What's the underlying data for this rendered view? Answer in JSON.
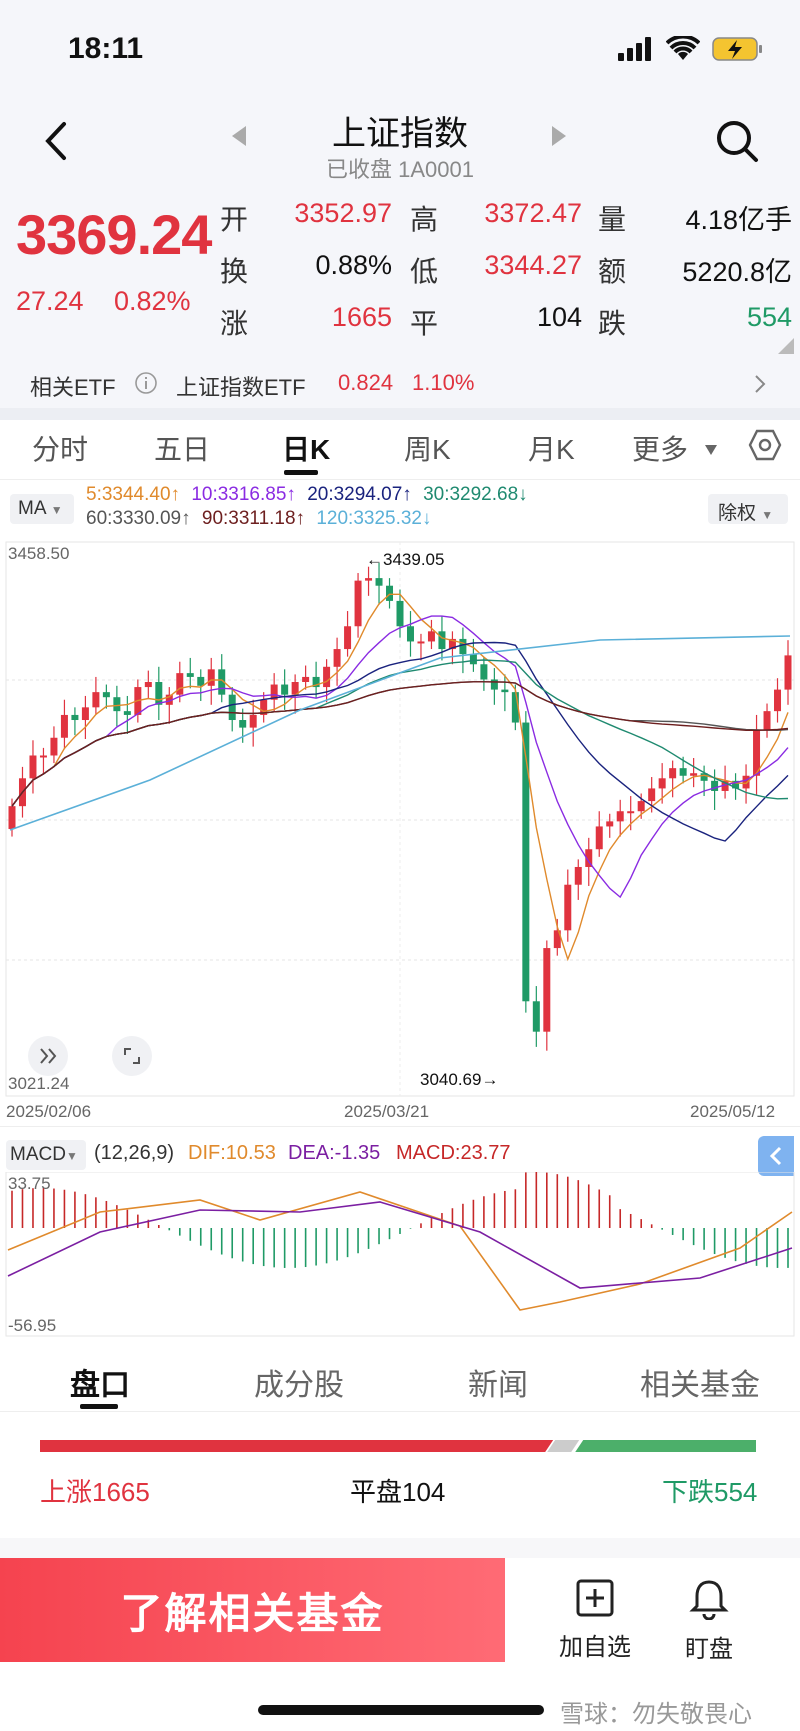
{
  "status": {
    "time": "18:11"
  },
  "nav": {
    "title": "上证指数",
    "subtitle": "已收盘 1A0001"
  },
  "quote": {
    "price": "3369.24",
    "change": "27.24",
    "change_pct": "0.82%",
    "open_label": "开",
    "open": "3352.97",
    "high_label": "高",
    "high": "3372.47",
    "volume_label": "量",
    "volume": "4.18亿手",
    "turnover_label": "换",
    "turnover": "0.88%",
    "low_label": "低",
    "low": "3344.27",
    "amount_label": "额",
    "amount": "5220.8亿",
    "up_label": "涨",
    "up": "1665",
    "flat_label": "平",
    "flat": "104",
    "down_label": "跌",
    "down": "554"
  },
  "etf": {
    "label": "相关ETF",
    "name": "上证指数ETF",
    "price": "0.824",
    "pct": "1.10%"
  },
  "period_tabs": [
    "分时",
    "五日",
    "日K",
    "周K",
    "月K",
    "更多"
  ],
  "ma": {
    "selector": "MA",
    "row1": [
      {
        "text": "5:3344.40↑",
        "color": "#e08a2c"
      },
      {
        "text": "10:3316.85↑",
        "color": "#8a2be2"
      },
      {
        "text": "20:3294.07↑",
        "color": "#1a237e"
      },
      {
        "text": "30:3292.68↓",
        "color": "#1f8a70"
      }
    ],
    "row2": [
      {
        "text": "60:3330.09↑",
        "color": "#555555"
      },
      {
        "text": "90:3311.18↑",
        "color": "#6d1f1f"
      },
      {
        "text": "120:3325.32↓",
        "color": "#5bb0d8"
      }
    ],
    "adjust": "除权"
  },
  "kchart": {
    "y_top": "3458.50",
    "y_bottom": "3021.24",
    "high_marker": "←3439.05",
    "low_marker": "3040.69→",
    "dates": [
      "2025/02/06",
      "2025/03/21",
      "2025/05/12"
    ]
  },
  "macd": {
    "selector": "MACD",
    "params": "(12,26,9)",
    "dif": "DIF:10.53",
    "dea": "DEA:-1.35",
    "macd": "MACD:23.77",
    "y_top": "33.75",
    "y_bottom": "-56.95"
  },
  "bottom_tabs": [
    "盘口",
    "成分股",
    "新闻",
    "相关基金"
  ],
  "breadth": {
    "up": "上涨1665",
    "flat": "平盘104",
    "down": "下跌554",
    "up_count": 1665,
    "flat_count": 104,
    "down_count": 554
  },
  "action": {
    "cta": "了解相关基金",
    "add_watch": "加自选",
    "monitor": "盯盘"
  },
  "watermark": "雪球：勿失敬畏心",
  "colors": {
    "up": "#e0333f",
    "down": "#1f9a66"
  }
}
